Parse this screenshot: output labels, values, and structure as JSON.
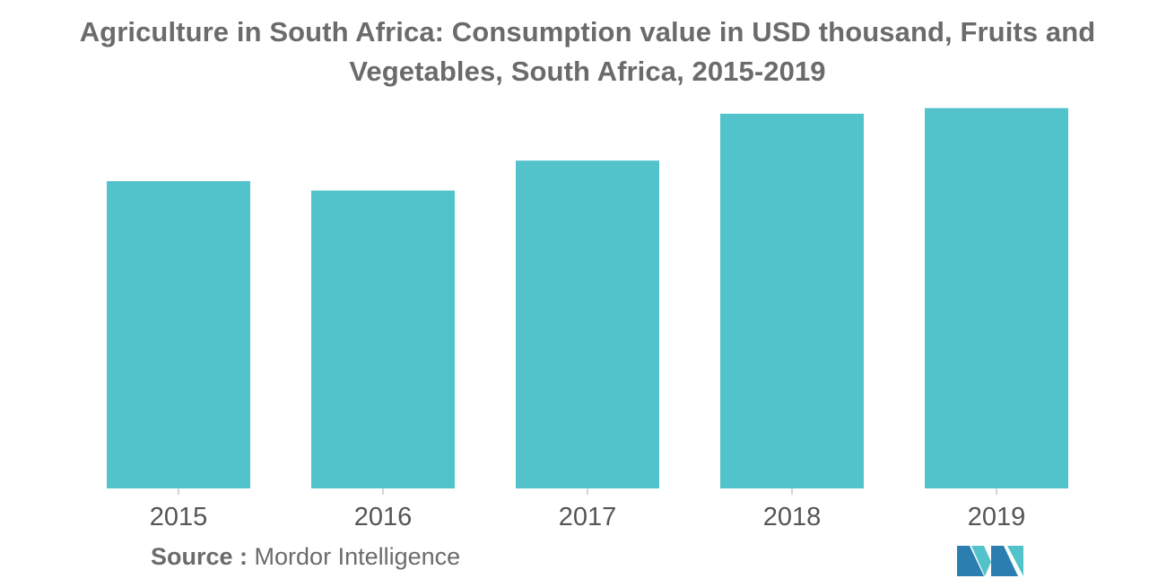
{
  "chart_data": {
    "type": "bar",
    "title": "Agriculture in South Africa: Consumption value in USD thousand, Fruits and Vegetables, South Africa, 2015-2019",
    "categories": [
      "2015",
      "2016",
      "2017",
      "2018",
      "2019"
    ],
    "values": [
      82,
      79.5,
      87.5,
      100,
      101.5
    ],
    "ylim": [
      0,
      105
    ],
    "grid": false,
    "bar_color": "#52c3ca"
  },
  "source": {
    "label": "Source :",
    "text": "Mordor Intelligence"
  },
  "colors": {
    "bar": "#52c3ca",
    "text": "#6b6b6b",
    "axis": "#c8c8c8",
    "logo_dark": "#2a7fb0",
    "logo_light": "#52c3ca"
  }
}
